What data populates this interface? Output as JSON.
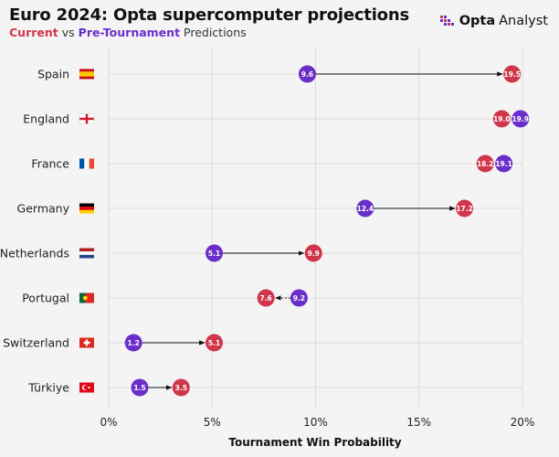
{
  "header": {
    "title": "Euro 2024: Opta supercomputer projections",
    "subtitle_current": "Current",
    "subtitle_vs": "vs",
    "subtitle_pre": "Pre-Tournament",
    "subtitle_tail": "Predictions"
  },
  "brand": {
    "name_bold": "Opta",
    "name_light": "Analyst",
    "icon": "opta-logo-icon"
  },
  "colors": {
    "current": "#d0364b",
    "pre_tournament": "#6a2fc9",
    "grid": "#dcdcdc",
    "background": "#f4f4f4"
  },
  "chart_data": {
    "type": "dumbbell",
    "title": "Euro 2024: Opta supercomputer projections",
    "xlabel": "Tournament Win Probability",
    "ylabel": "",
    "xlim": [
      0,
      20
    ],
    "xticks": [
      0,
      5,
      10,
      15,
      20
    ],
    "xtick_labels": [
      "0%",
      "5%",
      "10%",
      "15%",
      "20%"
    ],
    "grid": true,
    "series": [
      {
        "name": "Current",
        "color": "#d0364b"
      },
      {
        "name": "Pre-Tournament",
        "color": "#6a2fc9"
      }
    ],
    "categories": [
      "Spain",
      "England",
      "France",
      "Germany",
      "Netherlands",
      "Portugal",
      "Switzerland",
      "Türkiye"
    ],
    "rows": [
      {
        "team": "Spain",
        "flag": "spain-flag-icon",
        "current": 19.5,
        "pre": 9.6,
        "current_label": "19.5",
        "pre_label": "9.6"
      },
      {
        "team": "England",
        "flag": "england-flag-icon",
        "current": 19.0,
        "pre": 19.9,
        "current_label": "19.0",
        "pre_label": "19.9"
      },
      {
        "team": "France",
        "flag": "france-flag-icon",
        "current": 18.2,
        "pre": 19.1,
        "current_label": "18.2",
        "pre_label": "19.1"
      },
      {
        "team": "Germany",
        "flag": "germany-flag-icon",
        "current": 17.2,
        "pre": 12.4,
        "current_label": "17.2",
        "pre_label": "12.4"
      },
      {
        "team": "Netherlands",
        "flag": "netherlands-flag-icon",
        "current": 9.9,
        "pre": 5.1,
        "current_label": "9.9",
        "pre_label": "5.1"
      },
      {
        "team": "Portugal",
        "flag": "portugal-flag-icon",
        "current": 7.6,
        "pre": 9.2,
        "current_label": "7.6",
        "pre_label": "9.2"
      },
      {
        "team": "Switzerland",
        "flag": "switzerland-flag-icon",
        "current": 5.1,
        "pre": 1.2,
        "current_label": "5.1",
        "pre_label": "1.2"
      },
      {
        "team": "Türkiye",
        "flag": "turkiye-flag-icon",
        "current": 3.5,
        "pre": 1.5,
        "current_label": "3.5",
        "pre_label": "1.5"
      }
    ]
  }
}
